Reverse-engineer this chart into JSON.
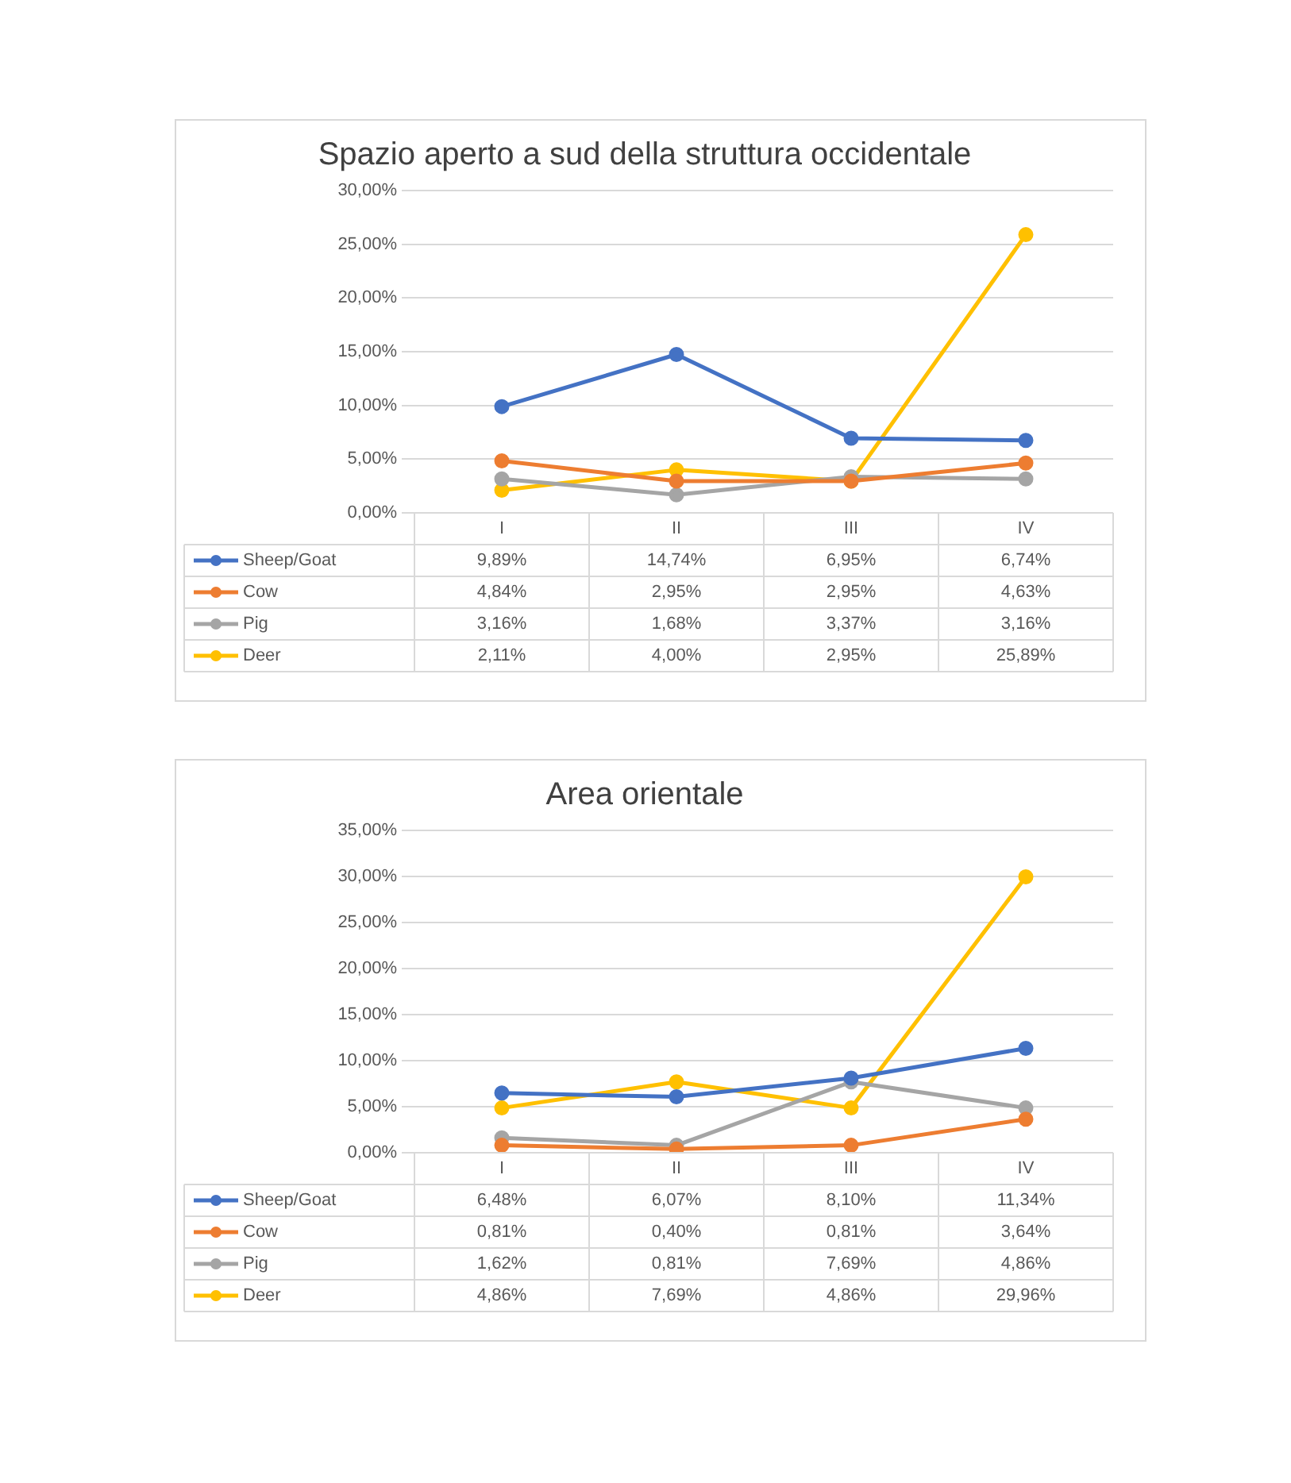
{
  "chart_data": [
    {
      "type": "line",
      "title": "Spazio aperto a sud della struttura occidentale",
      "categories": [
        "I",
        "II",
        "III",
        "IV"
      ],
      "ylim": [
        0,
        30
      ],
      "yticks": [
        {
          "value": 0,
          "label": "0,00%"
        },
        {
          "value": 5,
          "label": "5,00%"
        },
        {
          "value": 10,
          "label": "10,00%"
        },
        {
          "value": 15,
          "label": "15,00%"
        },
        {
          "value": 20,
          "label": "20,00%"
        },
        {
          "value": 25,
          "label": "25,00%"
        },
        {
          "value": 30,
          "label": "30,00%"
        }
      ],
      "grid": "y",
      "legend": "bottom",
      "marker": "circle",
      "series": [
        {
          "name": "Sheep/Goat",
          "color": "#4472c4",
          "values": [
            9.89,
            14.74,
            6.95,
            6.74
          ],
          "value_labels": [
            "9,89%",
            "14,74%",
            "6,95%",
            "6,74%"
          ]
        },
        {
          "name": "Cow",
          "color": "#ed7d31",
          "values": [
            4.84,
            2.95,
            2.95,
            4.63
          ],
          "value_labels": [
            "4,84%",
            "2,95%",
            "2,95%",
            "4,63%"
          ]
        },
        {
          "name": "Pig",
          "color": "#a5a5a5",
          "values": [
            3.16,
            1.68,
            3.37,
            3.16
          ],
          "value_labels": [
            "3,16%",
            "1,68%",
            "3,37%",
            "3,16%"
          ]
        },
        {
          "name": "Deer",
          "color": "#ffc000",
          "values": [
            2.11,
            4.0,
            2.95,
            25.89
          ],
          "value_labels": [
            "2,11%",
            "4,00%",
            "2,95%",
            "25,89%"
          ]
        }
      ]
    },
    {
      "type": "line",
      "title": "Area orientale",
      "categories": [
        "I",
        "II",
        "III",
        "IV"
      ],
      "ylim": [
        0,
        35
      ],
      "yticks": [
        {
          "value": 0,
          "label": "0,00%"
        },
        {
          "value": 5,
          "label": "5,00%"
        },
        {
          "value": 10,
          "label": "10,00%"
        },
        {
          "value": 15,
          "label": "15,00%"
        },
        {
          "value": 20,
          "label": "20,00%"
        },
        {
          "value": 25,
          "label": "25,00%"
        },
        {
          "value": 30,
          "label": "30,00%"
        },
        {
          "value": 35,
          "label": "35,00%"
        }
      ],
      "grid": "y",
      "legend": "bottom",
      "marker": "circle",
      "series": [
        {
          "name": "Sheep/Goat",
          "color": "#4472c4",
          "values": [
            6.48,
            6.07,
            8.1,
            11.34
          ],
          "value_labels": [
            "6,48%",
            "6,07%",
            "8,10%",
            "11,34%"
          ]
        },
        {
          "name": "Cow",
          "color": "#ed7d31",
          "values": [
            0.81,
            0.4,
            0.81,
            3.64
          ],
          "value_labels": [
            "0,81%",
            "0,40%",
            "0,81%",
            "3,64%"
          ]
        },
        {
          "name": "Pig",
          "color": "#a5a5a5",
          "values": [
            1.62,
            0.81,
            7.69,
            4.86
          ],
          "value_labels": [
            "1,62%",
            "0,81%",
            "7,69%",
            "4,86%"
          ]
        },
        {
          "name": "Deer",
          "color": "#ffc000",
          "values": [
            4.86,
            7.69,
            4.86,
            29.96
          ],
          "value_labels": [
            "4,86%",
            "7,69%",
            "4,86%",
            "29,96%"
          ]
        }
      ]
    }
  ]
}
